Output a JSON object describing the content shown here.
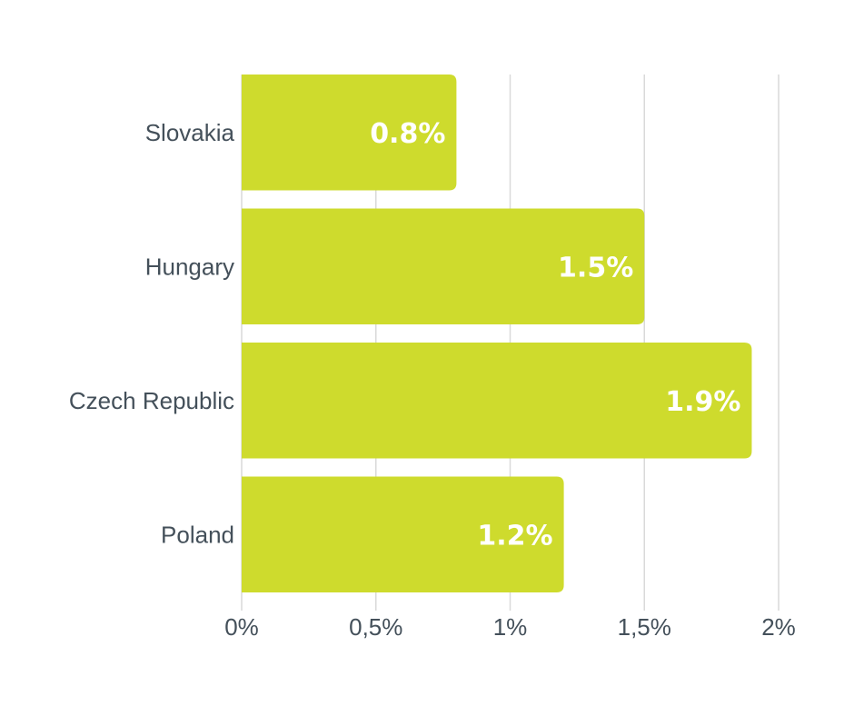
{
  "chart_data": {
    "type": "bar",
    "orientation": "horizontal",
    "categories": [
      "Slovakia",
      "Hungary",
      "Czech Republic",
      "Poland"
    ],
    "values": [
      0.8,
      1.5,
      1.9,
      1.2
    ],
    "value_labels": [
      "0.8%",
      "1.5%",
      "1.9%",
      "1.2%"
    ],
    "xlim": [
      0,
      2
    ],
    "x_ticks": [
      0,
      0.5,
      1,
      1.5,
      2
    ],
    "x_tick_labels": [
      "0%",
      "0,5%",
      "1%",
      "1,5%",
      "2%"
    ],
    "grid": true,
    "bar_color": "#cedb2d"
  }
}
